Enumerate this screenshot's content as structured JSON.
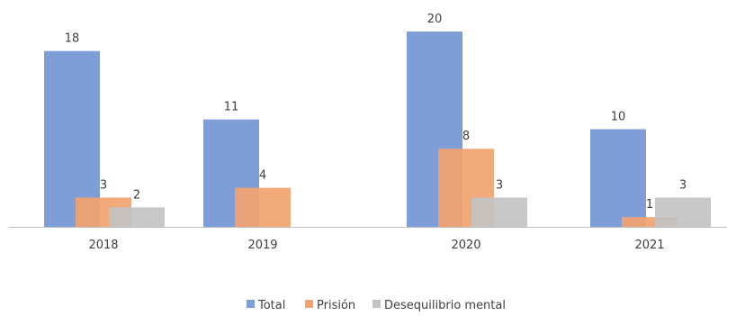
{
  "chart_data": {
    "type": "bar",
    "title": "",
    "xlabel": "",
    "ylabel": "",
    "categories": [
      "2018",
      "2019",
      "2020",
      "2021"
    ],
    "series": [
      {
        "name": "Total",
        "color": "#7f9ed8",
        "values": [
          18,
          11,
          20,
          10
        ],
        "labels": [
          "18",
          "11",
          "20",
          "10"
        ]
      },
      {
        "name": "Prisión",
        "color": "#f2a36f",
        "values": [
          3,
          4,
          8,
          1
        ],
        "labels": [
          "3",
          "4",
          "8",
          "1"
        ]
      },
      {
        "name": "Desequilibrio mental",
        "color": "#c3c3c3",
        "values": [
          2,
          null,
          3,
          3
        ],
        "labels": [
          "2",
          "",
          "3",
          "3"
        ]
      }
    ],
    "ylim": [
      0,
      20
    ],
    "grid": false,
    "legend": "bottom-center",
    "axis_line_color": "#bfbfbf"
  }
}
